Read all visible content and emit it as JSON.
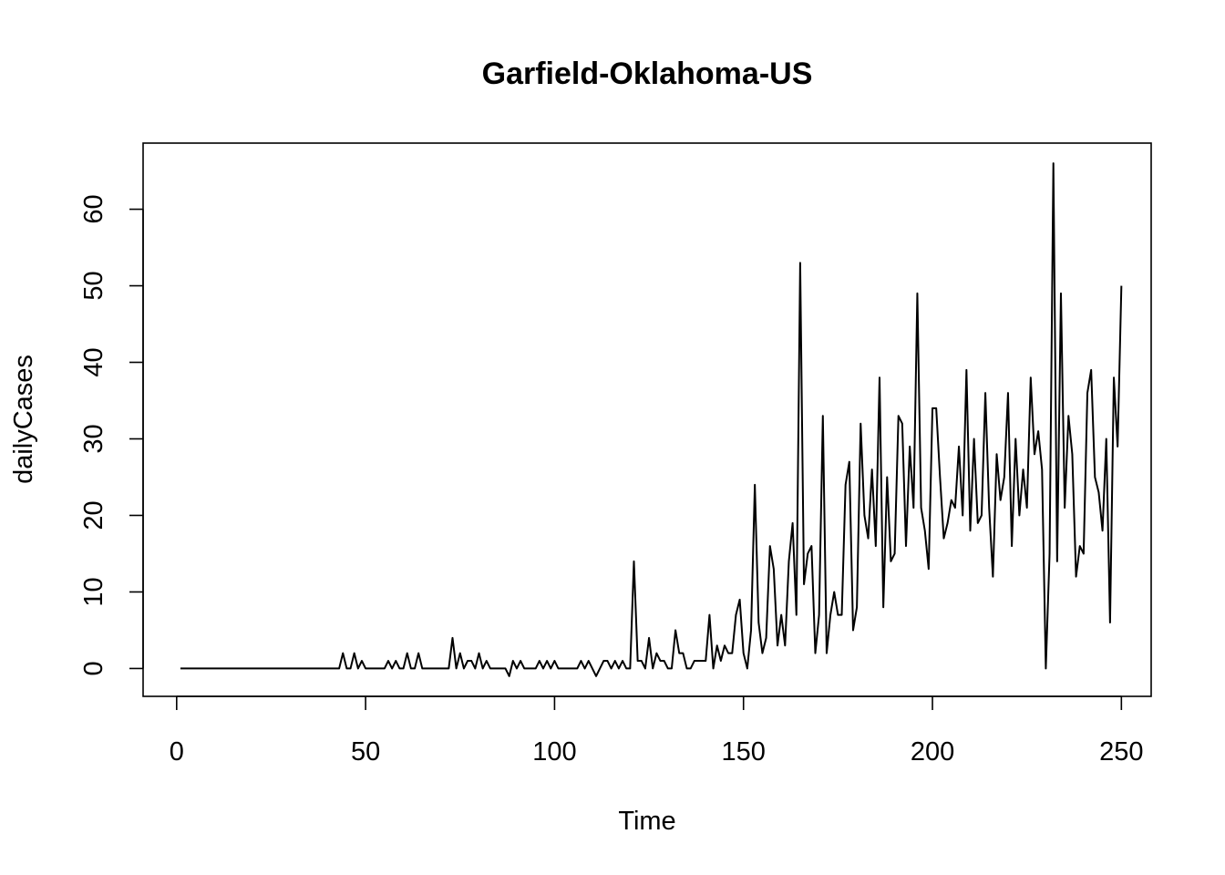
{
  "chart_data": {
    "type": "line",
    "title": "Garfield-Oklahoma-US",
    "xlabel": "Time",
    "ylabel": "dailyCases",
    "xlim": [
      -8.88,
      257.88
    ],
    "ylim": [
      -3.64,
      68.64
    ],
    "x_ticks": [
      0,
      50,
      100,
      150,
      200,
      250
    ],
    "y_ticks": [
      0,
      10,
      20,
      30,
      40,
      50,
      60
    ],
    "grid": false,
    "legend": "none",
    "line_color": "#000000",
    "x_start": 1,
    "values": [
      0,
      0,
      0,
      0,
      0,
      0,
      0,
      0,
      0,
      0,
      0,
      0,
      0,
      0,
      0,
      0,
      0,
      0,
      0,
      0,
      0,
      0,
      0,
      0,
      0,
      0,
      0,
      0,
      0,
      0,
      0,
      0,
      0,
      0,
      0,
      0,
      0,
      0,
      0,
      0,
      0,
      0,
      0,
      2,
      0,
      0,
      2,
      0,
      1,
      0,
      0,
      0,
      0,
      0,
      0,
      1,
      0,
      1,
      0,
      0,
      2,
      0,
      0,
      2,
      0,
      0,
      0,
      0,
      0,
      0,
      0,
      0,
      4,
      0,
      2,
      0,
      1,
      1,
      0,
      2,
      0,
      1,
      0,
      0,
      0,
      0,
      0,
      -1,
      1,
      0,
      1,
      0,
      0,
      0,
      0,
      1,
      0,
      1,
      0,
      1,
      0,
      0,
      0,
      0,
      0,
      0,
      1,
      0,
      1,
      0,
      -1,
      0,
      1,
      1,
      0,
      1,
      0,
      1,
      0,
      0,
      14,
      1,
      1,
      0,
      4,
      0,
      2,
      1,
      1,
      0,
      0,
      5,
      2,
      2,
      0,
      0,
      1,
      1,
      1,
      1,
      7,
      0,
      3,
      1,
      3,
      2,
      2,
      7,
      9,
      2,
      0,
      5,
      24,
      6,
      2,
      4,
      16,
      13,
      3,
      7,
      3,
      14,
      19,
      7,
      53,
      11,
      15,
      16,
      2,
      7,
      33,
      2,
      7,
      10,
      7,
      7,
      24,
      27,
      5,
      8,
      32,
      20,
      17,
      26,
      16,
      38,
      8,
      25,
      14,
      15,
      33,
      32,
      16,
      29,
      21,
      49,
      21,
      18,
      13,
      34,
      34,
      25,
      17,
      19,
      22,
      21,
      29,
      20,
      39,
      18,
      30,
      19,
      20,
      36,
      21,
      12,
      28,
      22,
      25,
      36,
      16,
      30,
      20,
      26,
      21,
      38,
      28,
      31,
      26,
      0,
      15,
      66,
      14,
      49,
      21,
      33,
      28,
      12,
      16,
      15,
      36,
      39,
      25,
      23,
      18,
      30,
      6,
      38,
      29,
      50
    ]
  }
}
